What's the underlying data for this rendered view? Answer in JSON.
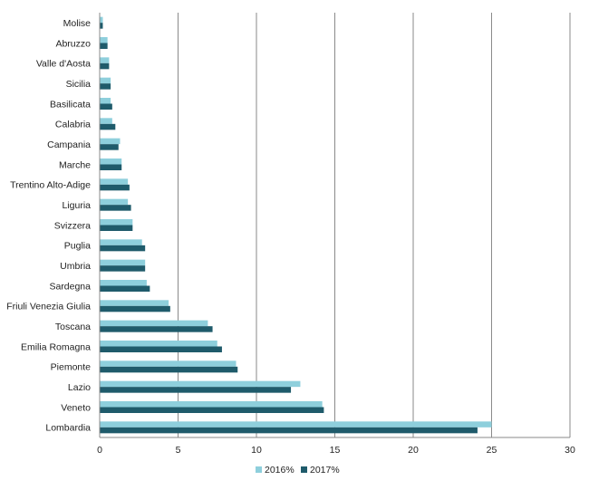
{
  "chart_data": {
    "type": "bar",
    "orientation": "horizontal",
    "title": "",
    "xlabel": "",
    "ylabel": "",
    "xlim": [
      0,
      30
    ],
    "x_ticks": [
      0,
      5,
      10,
      15,
      20,
      25,
      30
    ],
    "grid": "vertical",
    "legend_position": "bottom",
    "categories": [
      "Molise",
      "Abruzzo",
      "Valle d'Aosta",
      "Sicilia",
      "Basilicata",
      "Calabria",
      "Campania",
      "Marche",
      "Trentino Alto-Adige",
      "Liguria",
      "Svizzera",
      "Puglia",
      "Umbria",
      "Sardegna",
      "Friuli Venezia Giulia",
      "Toscana",
      "Emilia Romagna",
      "Piemonte",
      "Lazio",
      "Veneto",
      "Lombardia"
    ],
    "series": [
      {
        "name": "2016%",
        "color": "#8ecfdc",
        "values": [
          0.2,
          0.5,
          0.6,
          0.7,
          0.7,
          0.8,
          1.3,
          1.4,
          1.8,
          1.8,
          2.1,
          2.7,
          2.9,
          3.0,
          4.4,
          6.9,
          7.5,
          8.7,
          12.8,
          14.2,
          25.0
        ]
      },
      {
        "name": "2017%",
        "color": "#1f5b6b",
        "values": [
          0.2,
          0.5,
          0.6,
          0.7,
          0.8,
          1.0,
          1.2,
          1.4,
          1.9,
          2.0,
          2.1,
          2.9,
          2.9,
          3.2,
          4.5,
          7.2,
          7.8,
          8.8,
          12.2,
          14.3,
          24.1
        ]
      }
    ]
  }
}
